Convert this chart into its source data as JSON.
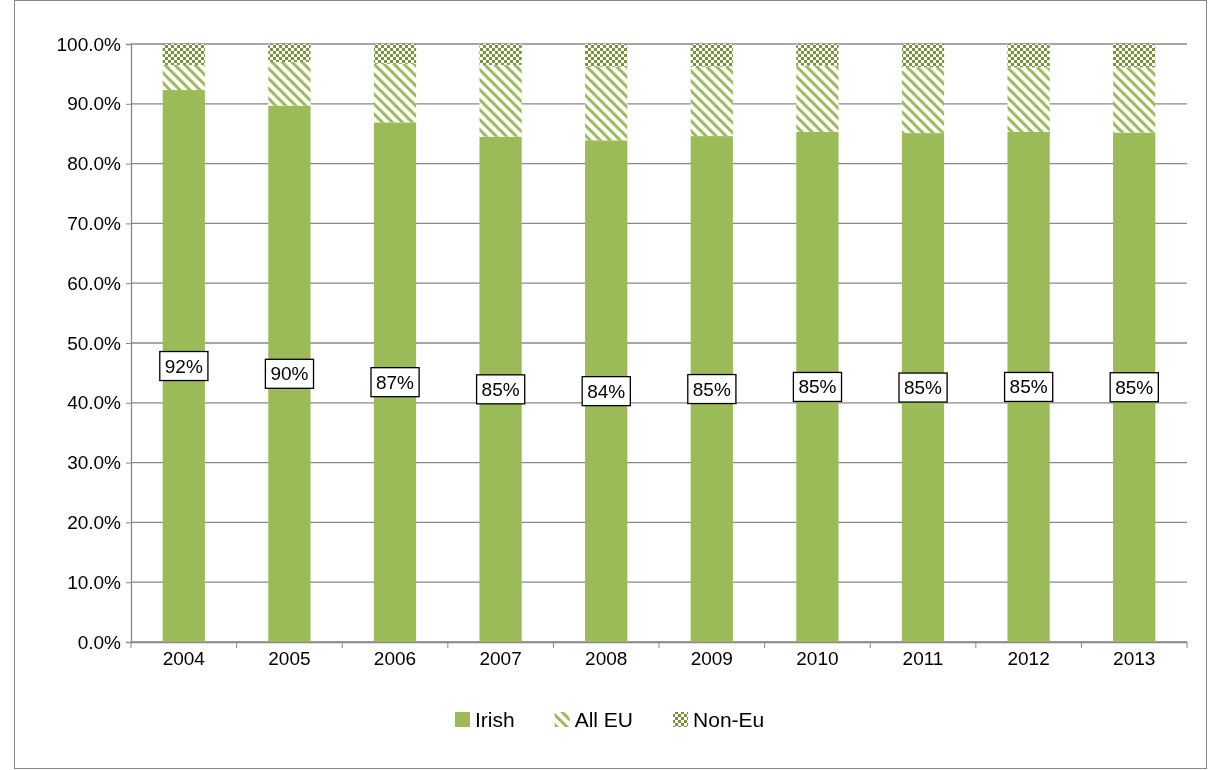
{
  "chart_data": {
    "type": "bar",
    "stacked": true,
    "categories": [
      "2004",
      "2005",
      "2006",
      "2007",
      "2008",
      "2009",
      "2010",
      "2011",
      "2012",
      "2013"
    ],
    "series": [
      {
        "name": "Irish",
        "color": "#9bbb59",
        "values": [
          92.3,
          89.7,
          86.9,
          84.5,
          83.9,
          84.6,
          85.3,
          85.1,
          85.3,
          85.2
        ],
        "value_labels": [
          "92%",
          "90%",
          "87%",
          "85%",
          "84%",
          "85%",
          "85%",
          "85%",
          "85%",
          "85%"
        ]
      },
      {
        "name": "All EU",
        "color": "#9bbb59",
        "values": [
          4.2,
          7.3,
          9.8,
          12.0,
          12.3,
          11.6,
          11.1,
          11.0,
          10.8,
          10.9
        ]
      },
      {
        "name": "Non-Eu",
        "color": "#77933c",
        "values": [
          3.5,
          3.0,
          3.3,
          3.5,
          3.8,
          3.8,
          3.6,
          3.9,
          3.9,
          3.9
        ]
      }
    ],
    "ylim": [
      0,
      100
    ],
    "yticks": [
      {
        "value": 0,
        "label": "0.0%"
      },
      {
        "value": 10,
        "label": "10.0%"
      },
      {
        "value": 20,
        "label": "20.0%"
      },
      {
        "value": 30,
        "label": "30.0%"
      },
      {
        "value": 40,
        "label": "40.0%"
      },
      {
        "value": 50,
        "label": "50.0%"
      },
      {
        "value": 60,
        "label": "60.0%"
      },
      {
        "value": 70,
        "label": "70.0%"
      },
      {
        "value": 80,
        "label": "80.0%"
      },
      {
        "value": 90,
        "label": "90.0%"
      },
      {
        "value": 100,
        "label": "100.0%"
      }
    ],
    "grid": "y",
    "legend": "bottom"
  }
}
